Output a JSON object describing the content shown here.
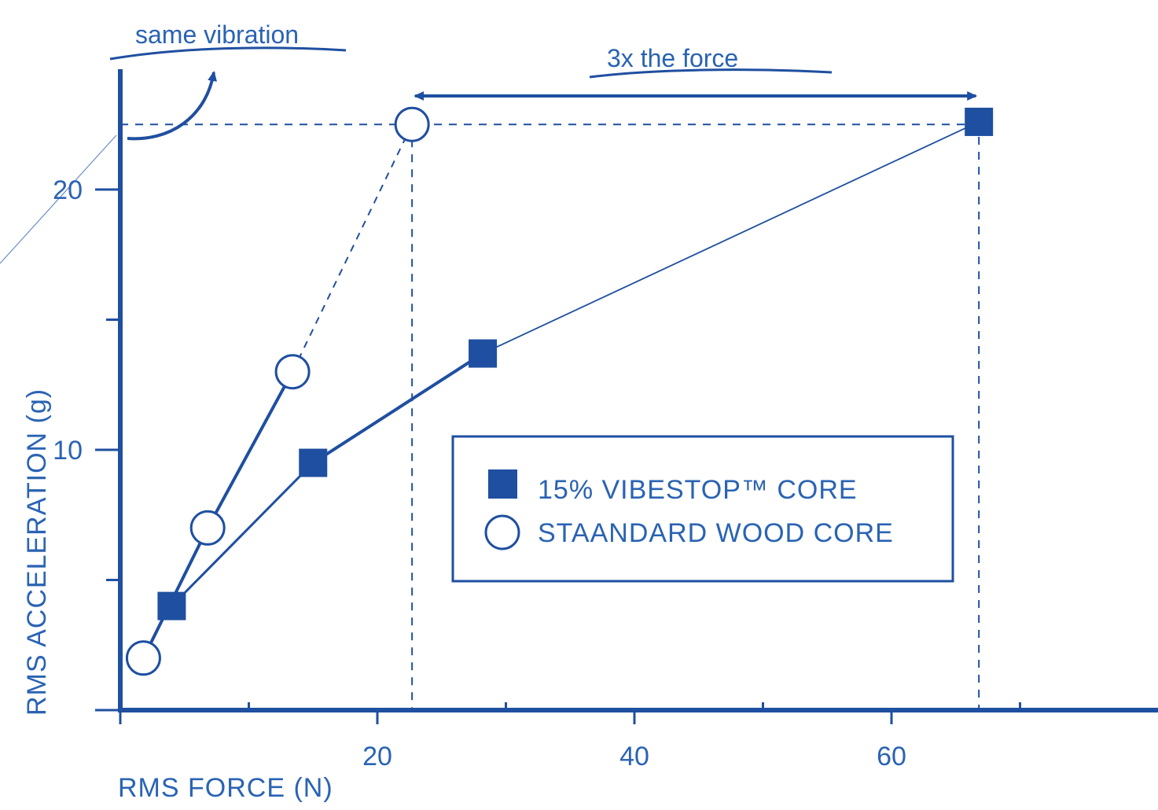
{
  "colors": {
    "primary": "#1f4fa0",
    "light": "#2a63b3",
    "background": "#ffffff"
  },
  "chart_data": {
    "type": "line",
    "xlabel": "RMS FORCE (N)",
    "ylabel": "RMS ACCELERATION (g)",
    "xlim": [
      0,
      80
    ],
    "ylim": [
      0,
      25
    ],
    "x_ticks": [
      20,
      40,
      60
    ],
    "y_ticks": [
      10,
      20
    ],
    "x_minor_ticks": [
      10,
      30,
      50,
      70
    ],
    "y_minor_ticks": [
      5,
      15
    ],
    "grid": false,
    "legend_position": "center-right",
    "series": [
      {
        "name": "15% VIBESTOP™ CORE",
        "marker": "filled-square",
        "line_style": "solid",
        "points": [
          {
            "x": 4,
            "y": 4
          },
          {
            "x": 15,
            "y": 9.5
          },
          {
            "x": 28.2,
            "y": 13.7
          },
          {
            "x": 66.8,
            "y": 22.6
          }
        ]
      },
      {
        "name": "STAANDARD WOOD CORE",
        "marker": "open-circle",
        "line_style": "solid-then-dashed",
        "points": [
          {
            "x": 1.8,
            "y": 2
          },
          {
            "x": 6.8,
            "y": 7
          },
          {
            "x": 13.4,
            "y": 13
          },
          {
            "x": 22.7,
            "y": 22.5
          }
        ]
      }
    ],
    "annotations": [
      {
        "text": "same vibration",
        "type": "curved-arrow-to-y-axis"
      },
      {
        "text": "3x the force",
        "type": "double-arrow",
        "x_from": 22.7,
        "x_to": 66.8
      }
    ]
  }
}
